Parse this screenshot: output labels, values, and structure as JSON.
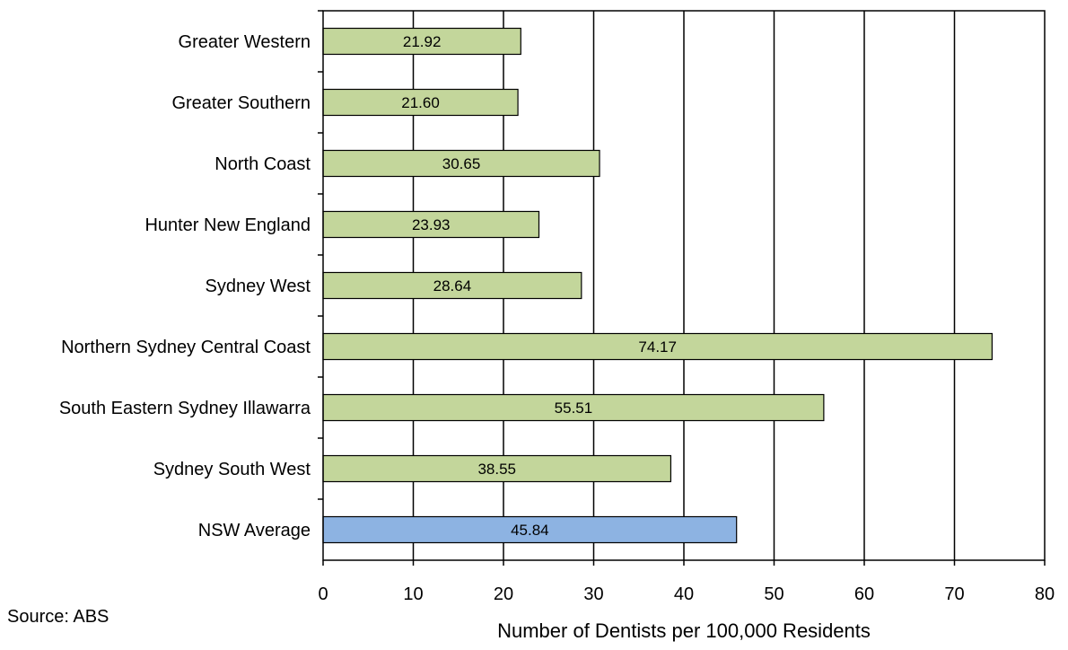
{
  "chart_data": {
    "type": "bar",
    "orientation": "horizontal",
    "categories": [
      "Greater Western",
      "Greater Southern",
      "North Coast",
      "Hunter New England",
      "Sydney West",
      "Northern Sydney Central Coast",
      "South Eastern Sydney Illawarra",
      "Sydney South West",
      "NSW Average"
    ],
    "values": [
      21.92,
      21.6,
      30.65,
      23.93,
      28.64,
      74.17,
      55.51,
      38.55,
      45.84
    ],
    "data_labels": [
      "21.92",
      "21.60",
      "30.65",
      "23.93",
      "28.64",
      "74.17",
      "55.51",
      "38.55",
      "45.84"
    ],
    "bar_colors": [
      "#c3d69b",
      "#c3d69b",
      "#c3d69b",
      "#c3d69b",
      "#c3d69b",
      "#c3d69b",
      "#c3d69b",
      "#c3d69b",
      "#8db3e2"
    ],
    "xlabel": "Number of Dentists per 100,000 Residents",
    "ylabel": "",
    "title": "",
    "xlim": [
      0,
      80
    ],
    "x_ticks": [
      0,
      10,
      20,
      30,
      40,
      50,
      60,
      70,
      80
    ],
    "grid": "vertical",
    "legend": "none"
  },
  "note": {
    "source": "Source: ABS"
  }
}
